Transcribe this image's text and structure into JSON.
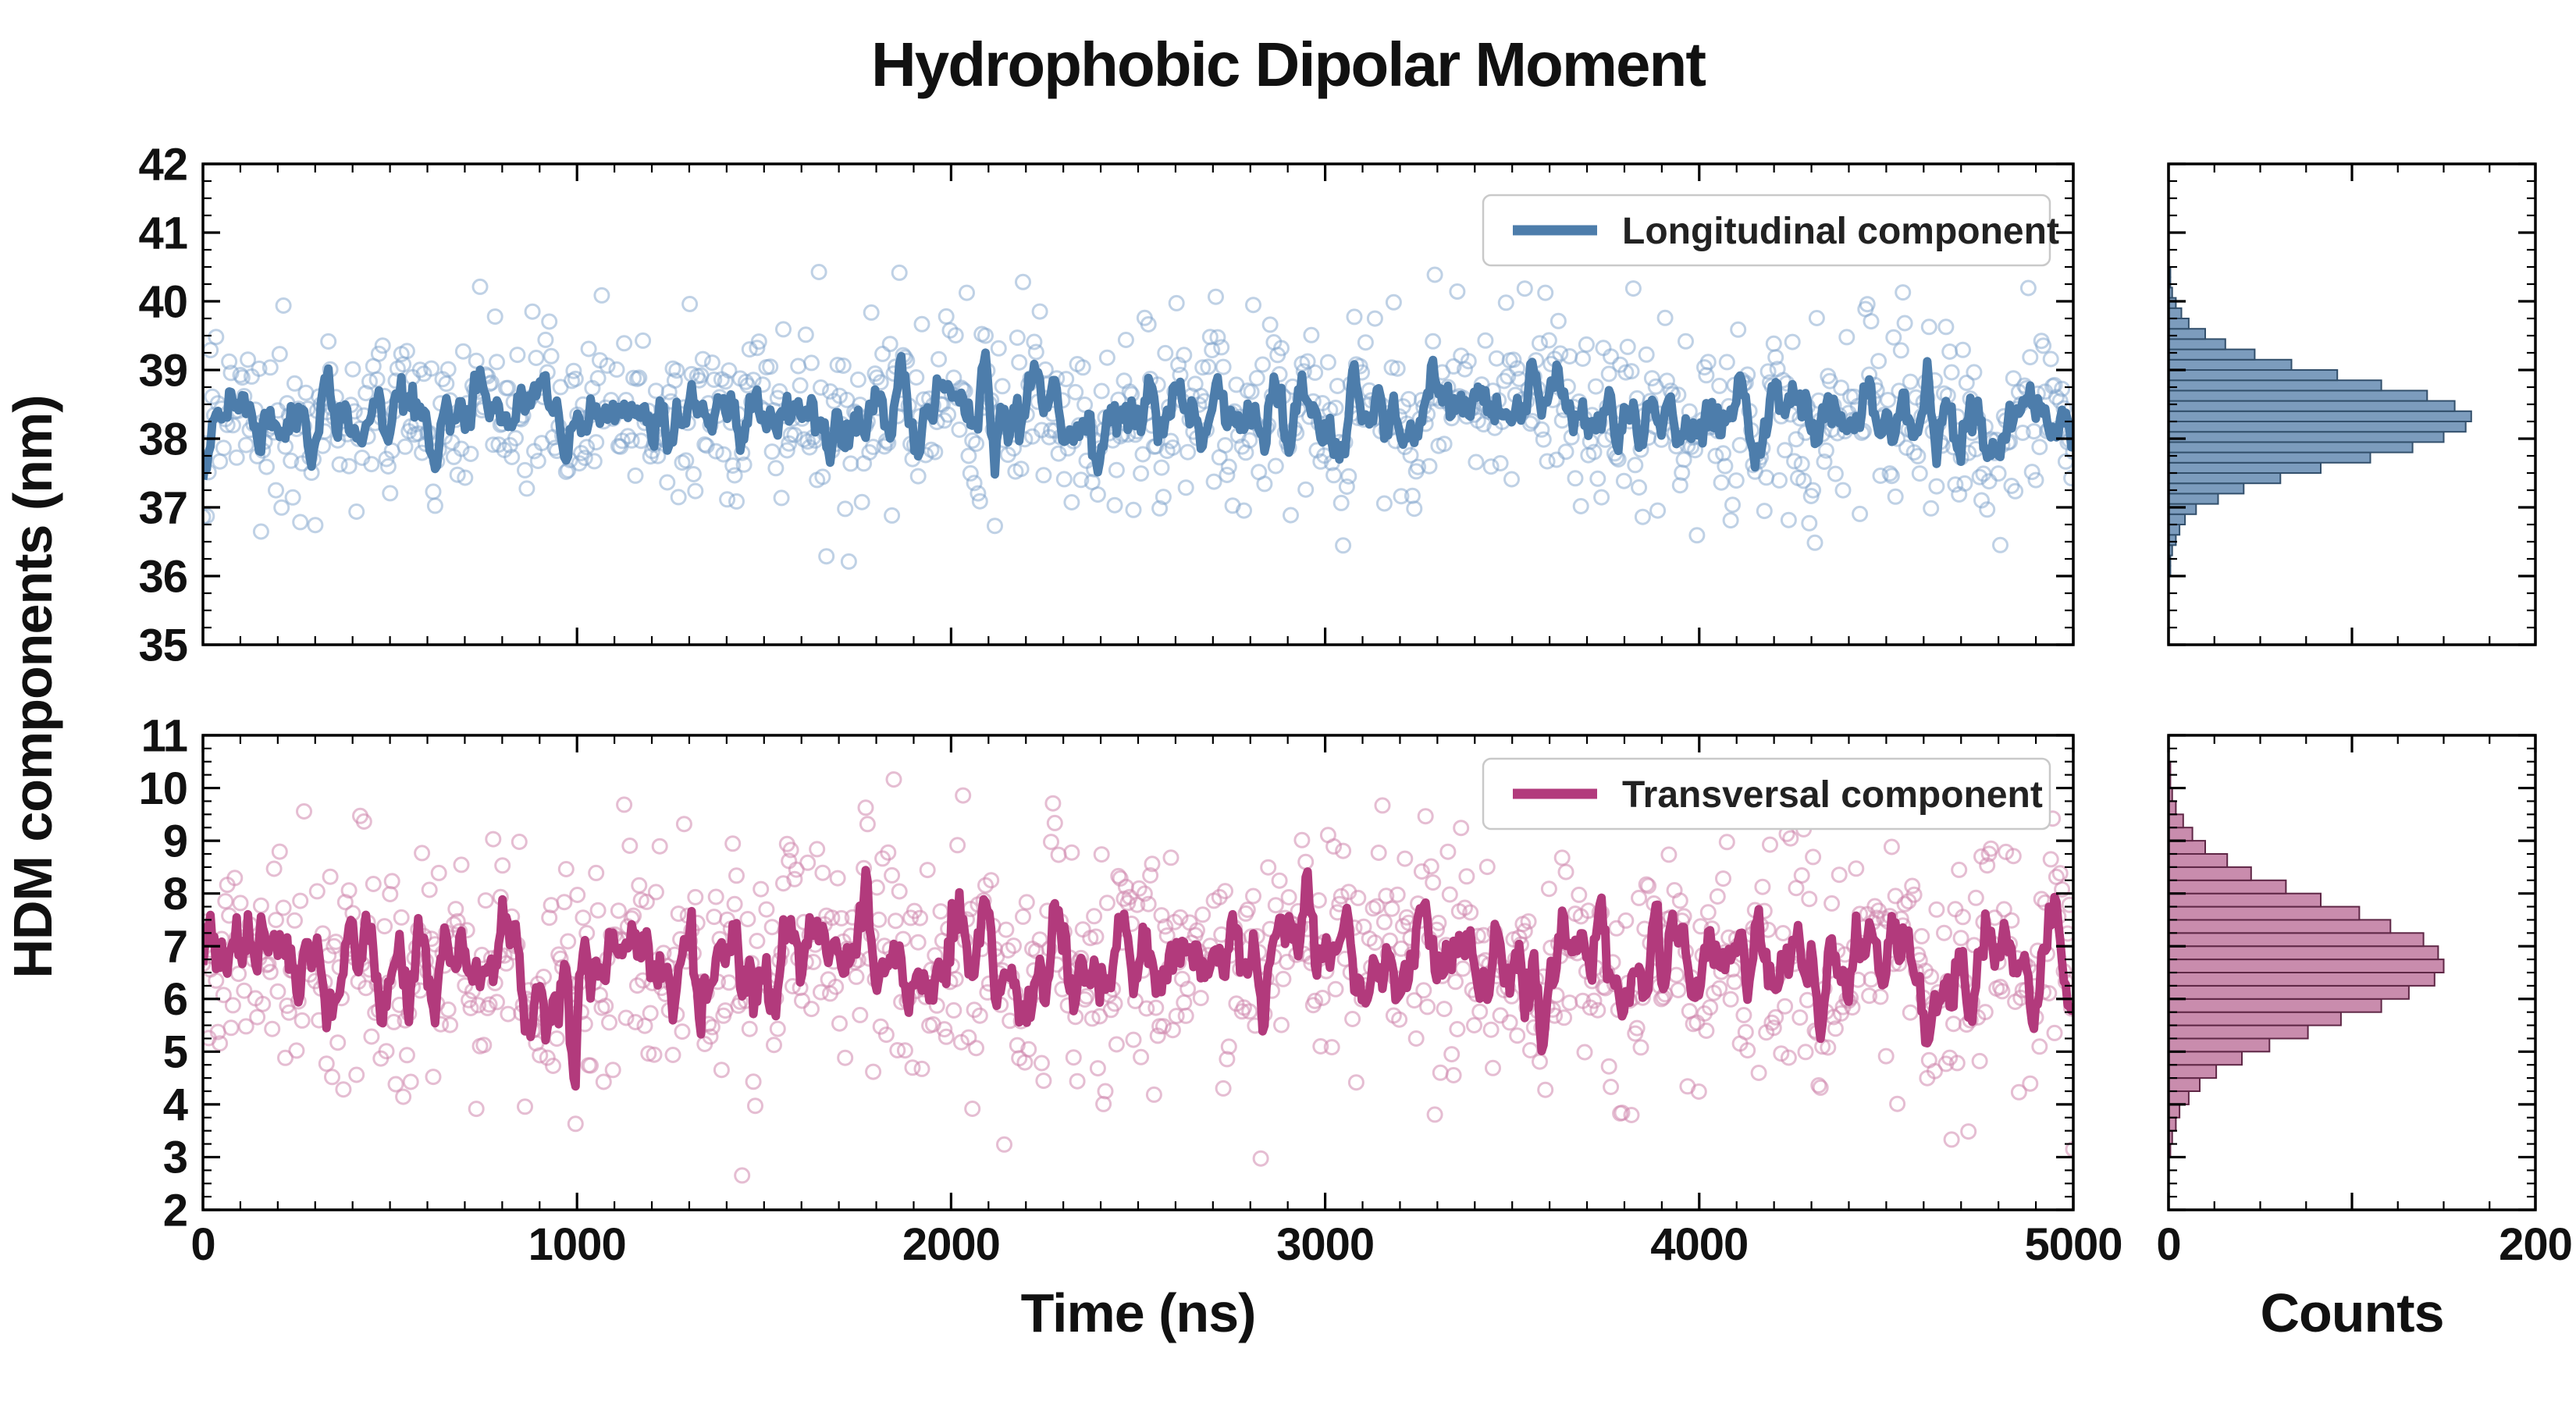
{
  "title": "Hydrophobic Dipolar Moment",
  "axes": {
    "xlabel": "Time (ns)",
    "ylabel": "HDM components (nm)",
    "hist_xlabel": "Counts"
  },
  "legend": {
    "top": "Longitudinal component",
    "bottom": "Transversal component"
  },
  "chart_data": [
    {
      "type": "scatter",
      "name": "Longitudinal component",
      "x_range": [
        0,
        5000
      ],
      "ylim": [
        35,
        42
      ],
      "yticks": [
        35,
        36,
        37,
        38,
        39,
        40,
        41,
        42
      ],
      "y_minor_step": 0.25,
      "xticks": [
        0,
        1000,
        2000,
        3000,
        4000,
        5000
      ],
      "x_minor_step": 100,
      "show_x_labels": false,
      "n_points": 1000,
      "mean": 38.35,
      "line_std": 0.3,
      "scatter_std": 0.62,
      "scatter_opacity": 0.5,
      "seed": 11,
      "colors": {
        "line": "#4d7dab",
        "scatter": "#7fa3cc",
        "hist_fill": "#7c9cbd",
        "hist_edge": "#33506c"
      },
      "hist": {
        "xlim": [
          0,
          200
        ],
        "xticks": [
          0,
          100,
          200
        ],
        "xtick_labels": [
          "0",
          "",
          "200"
        ],
        "x_minor_step": 25,
        "show_x_labels": false,
        "bin_start": 36.0,
        "bin_step": 0.15,
        "counts": [
          1,
          1,
          2,
          4,
          6,
          9,
          15,
          27,
          41,
          61,
          83,
          110,
          133,
          150,
          162,
          165,
          156,
          141,
          116,
          92,
          67,
          47,
          31,
          20,
          11,
          7,
          4,
          2,
          1,
          1,
          0
        ]
      }
    },
    {
      "type": "scatter",
      "name": "Transversal component",
      "x_range": [
        0,
        5000
      ],
      "ylim": [
        2,
        11
      ],
      "yticks": [
        2,
        3,
        4,
        5,
        6,
        7,
        8,
        9,
        10,
        11
      ],
      "y_minor_step": 0.25,
      "xticks": [
        0,
        1000,
        2000,
        3000,
        4000,
        5000
      ],
      "x_minor_step": 100,
      "show_x_labels": true,
      "n_points": 1000,
      "mean": 6.6,
      "line_std": 0.55,
      "scatter_std": 1.05,
      "scatter_opacity": 0.55,
      "seed": 23,
      "colors": {
        "line": "#b23a7c",
        "scatter": "#cf86ad",
        "hist_fill": "#c98cad",
        "hist_edge": "#5f2746"
      },
      "hist": {
        "xlim": [
          0,
          200
        ],
        "xticks": [
          0,
          100,
          200
        ],
        "xtick_labels": [
          "0",
          "",
          "200"
        ],
        "x_minor_step": 25,
        "show_x_labels": true,
        "bin_start": 2.75,
        "bin_step": 0.25,
        "counts": [
          0,
          1,
          2,
          4,
          6,
          11,
          17,
          26,
          40,
          55,
          76,
          94,
          116,
          131,
          145,
          150,
          147,
          139,
          121,
          104,
          83,
          64,
          45,
          32,
          20,
          13,
          8,
          4,
          2,
          1,
          1,
          0
        ]
      }
    }
  ]
}
